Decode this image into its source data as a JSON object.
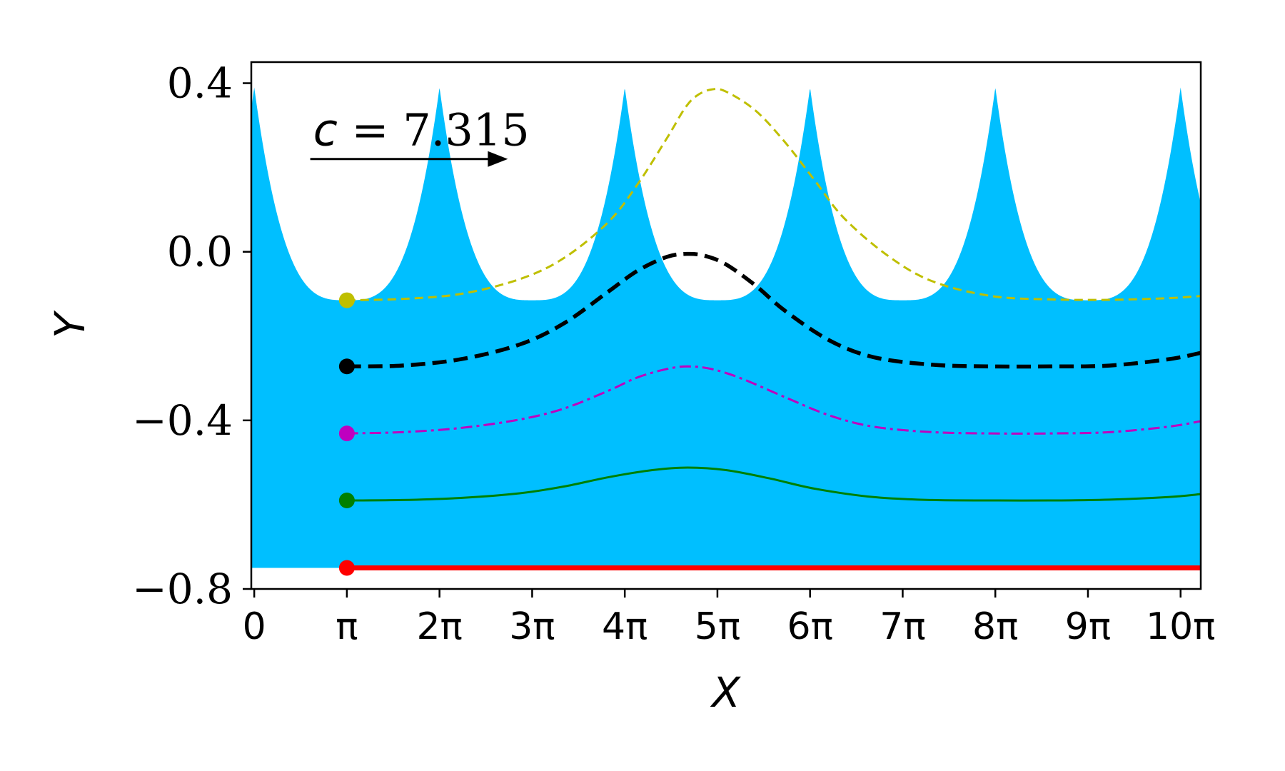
{
  "chart_data": {
    "type": "line",
    "xlabel": "X",
    "ylabel": "Y",
    "xlim": [
      -0.1,
      32.1
    ],
    "ylim": [
      -0.8,
      0.45
    ],
    "x_ticks": [
      {
        "value": 0,
        "label": "0"
      },
      {
        "value": 3.14159,
        "label": "π"
      },
      {
        "value": 6.28319,
        "label": "2π"
      },
      {
        "value": 9.42478,
        "label": "3π"
      },
      {
        "value": 12.56637,
        "label": "4π"
      },
      {
        "value": 15.70796,
        "label": "5π"
      },
      {
        "value": 18.84956,
        "label": "6π"
      },
      {
        "value": 21.99115,
        "label": "7π"
      },
      {
        "value": 25.13274,
        "label": "8π"
      },
      {
        "value": 28.27433,
        "label": "9π"
      },
      {
        "value": 31.41593,
        "label": "10π"
      }
    ],
    "y_ticks": [
      {
        "value": 0.4,
        "label": "0.4"
      },
      {
        "value": 0.0,
        "label": "0.0"
      },
      {
        "value": -0.4,
        "label": "−0.4"
      },
      {
        "value": -0.8,
        "label": "−0.8"
      }
    ],
    "annotation": {
      "variable": "c",
      "equals": " = 7.315",
      "arrow_from_x": 1.9,
      "arrow_to_x": 8.6,
      "arrow_y": 0.22,
      "text_x": 2.0,
      "text_y": 0.27
    },
    "fluid_region": {
      "color": "#00bfff",
      "bottom": -0.75,
      "trough": -0.115,
      "crest": 0.39,
      "period": 6.28319,
      "first_crest_x": 0.0
    },
    "series": [
      {
        "color": "#bfbf00",
        "style": "dashed-thin",
        "start_marker": [
          3.14159,
          -0.115
        ],
        "x": [
          3.14,
          5,
          7,
          9,
          10.5,
          12,
          13,
          14,
          14.6,
          15,
          15.5,
          16,
          17,
          18,
          19,
          20,
          21.5,
          23,
          25,
          27,
          29,
          31,
          32.1
        ],
        "y": [
          -0.115,
          -0.112,
          -0.1,
          -0.065,
          -0.015,
          0.07,
          0.16,
          0.27,
          0.34,
          0.37,
          0.385,
          0.38,
          0.335,
          0.26,
          0.17,
          0.08,
          -0.01,
          -0.07,
          -0.105,
          -0.113,
          -0.114,
          -0.11,
          -0.105
        ]
      },
      {
        "color": "#000000",
        "style": "dashed-thick",
        "start_marker": [
          3.14159,
          -0.272
        ],
        "x": [
          3.14,
          5,
          7,
          9,
          10.5,
          12,
          13,
          14,
          14.7,
          15.3,
          16,
          17,
          18,
          19.5,
          21,
          23,
          25,
          27,
          29,
          31,
          32.1
        ],
        "y": [
          -0.272,
          -0.27,
          -0.255,
          -0.22,
          -0.17,
          -0.095,
          -0.045,
          -0.012,
          -0.005,
          -0.01,
          -0.03,
          -0.08,
          -0.14,
          -0.21,
          -0.25,
          -0.268,
          -0.272,
          -0.272,
          -0.27,
          -0.255,
          -0.24
        ]
      },
      {
        "color": "#bf00bf",
        "style": "dashdot",
        "start_marker": [
          3.14159,
          -0.431
        ],
        "x": [
          3.14,
          5,
          7,
          9,
          10.5,
          12,
          13,
          14,
          14.7,
          15.5,
          16.5,
          18,
          19.5,
          21,
          23,
          25,
          27,
          29,
          31,
          32.1
        ],
        "y": [
          -0.431,
          -0.428,
          -0.418,
          -0.398,
          -0.372,
          -0.33,
          -0.298,
          -0.278,
          -0.272,
          -0.278,
          -0.3,
          -0.345,
          -0.388,
          -0.415,
          -0.428,
          -0.431,
          -0.431,
          -0.428,
          -0.415,
          -0.402
        ]
      },
      {
        "color": "#008000",
        "style": "solid",
        "start_marker": [
          3.14159,
          -0.59
        ],
        "x": [
          3.14,
          5,
          7,
          9,
          10.5,
          12,
          13.5,
          14.7,
          16,
          17.5,
          19,
          21,
          23,
          25,
          27,
          29,
          31,
          32.1
        ],
        "y": [
          -0.59,
          -0.589,
          -0.584,
          -0.573,
          -0.557,
          -0.535,
          -0.518,
          -0.512,
          -0.518,
          -0.538,
          -0.562,
          -0.582,
          -0.589,
          -0.59,
          -0.59,
          -0.588,
          -0.582,
          -0.575
        ]
      },
      {
        "color": "#ff0000",
        "style": "solid-thick",
        "start_marker": [
          3.14159,
          -0.75
        ],
        "x": [
          3.14,
          32.1
        ],
        "y": [
          -0.75,
          -0.75
        ]
      }
    ]
  }
}
